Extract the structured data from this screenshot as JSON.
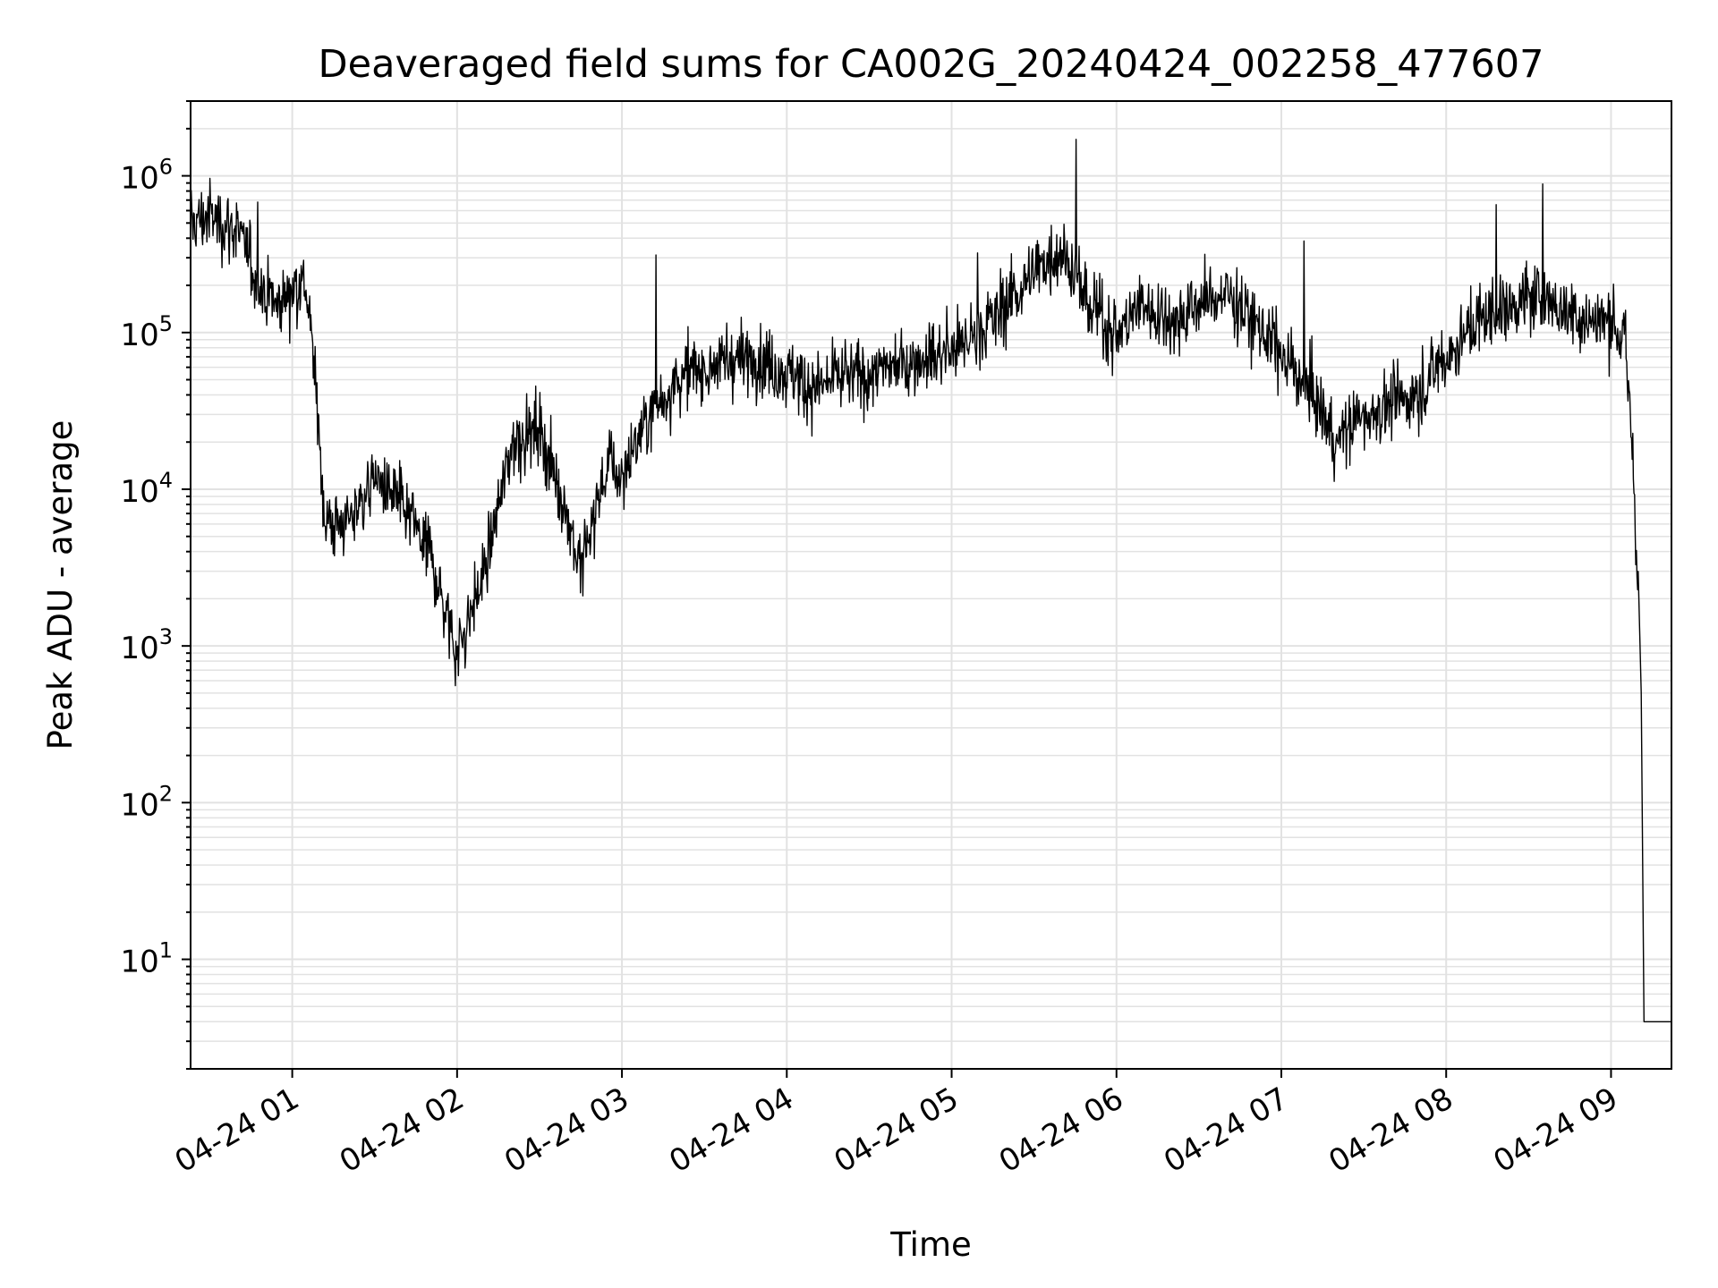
{
  "chart_data": {
    "type": "line",
    "title": "Deaveraged field sums for CA002G_20240424_002258_477607",
    "xlabel": "Time",
    "ylabel": "Peak ADU - average",
    "x_scale": "time",
    "y_scale": "log",
    "xlim": [
      "2024-04-24 00:23",
      "2024-04-24 09:22"
    ],
    "ylim": [
      2,
      3000000
    ],
    "x_ticks": [
      "04-24 01",
      "04-24 02",
      "04-24 03",
      "04-24 04",
      "04-24 05",
      "04-24 06",
      "04-24 07",
      "04-24 08",
      "04-24 09"
    ],
    "y_ticks": [
      {
        "base": "10",
        "exp": "1"
      },
      {
        "base": "10",
        "exp": "2"
      },
      {
        "base": "10",
        "exp": "3"
      },
      {
        "base": "10",
        "exp": "4"
      },
      {
        "base": "10",
        "exp": "5"
      },
      {
        "base": "10",
        "exp": "6"
      }
    ],
    "grid": true,
    "legend": "none",
    "line_color": "#000000",
    "grid_color": "#e2e2e2",
    "series": [
      {
        "x": [
          "00:23",
          "00:30",
          "00:40",
          "00:48",
          "00:55",
          "01:00",
          "01:05",
          "01:08",
          "01:12",
          "01:20",
          "01:30",
          "01:40",
          "01:50",
          "02:00",
          "02:10",
          "02:20",
          "02:30",
          "02:40",
          "02:45",
          "02:55",
          "03:00",
          "03:10",
          "03:20",
          "03:30",
          "03:40",
          "03:50",
          "04:00",
          "04:10",
          "04:20",
          "04:30",
          "04:40",
          "04:50",
          "05:00",
          "05:10",
          "05:20",
          "05:30",
          "05:40",
          "05:50",
          "06:00",
          "06:10",
          "06:20",
          "06:30",
          "06:40",
          "06:50",
          "07:00",
          "07:10",
          "07:20",
          "07:30",
          "07:40",
          "07:50",
          "08:00",
          "08:10",
          "08:20",
          "08:30",
          "08:40",
          "08:50",
          "09:00",
          "09:05",
          "09:08",
          "09:10",
          "09:11",
          "09:12",
          "09:13",
          "09:22"
        ],
        "y": [
          500000,
          550000,
          450000,
          200000,
          150000,
          200000,
          200000,
          60000,
          6000,
          6000,
          12000,
          8000,
          4000,
          900,
          3000,
          20000,
          25000,
          7000,
          3000,
          15000,
          12000,
          30000,
          50000,
          60000,
          65000,
          70000,
          55000,
          45000,
          50000,
          55000,
          60000,
          70000,
          80000,
          100000,
          150000,
          250000,
          350000,
          150000,
          100000,
          150000,
          120000,
          150000,
          180000,
          120000,
          70000,
          45000,
          20000,
          30000,
          35000,
          40000,
          70000,
          110000,
          140000,
          170000,
          150000,
          120000,
          120000,
          90000,
          15000,
          2000,
          500,
          4,
          4,
          4
        ]
      }
    ]
  }
}
